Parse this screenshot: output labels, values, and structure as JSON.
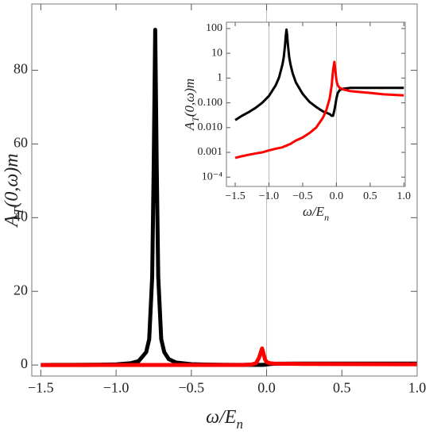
{
  "chart_data": [
    {
      "type": "line",
      "xlabel": {
        "main": "ω/E",
        "sub": "n"
      },
      "ylabel": {
        "main": "A",
        "sub": "T",
        "rest": "(0,ω)m"
      },
      "x": [
        -1.5,
        -1.4,
        -1.3,
        -1.2,
        -1.1,
        -1.0,
        -0.9,
        -0.85,
        -0.8,
        -0.78,
        -0.76,
        -0.75,
        -0.74,
        -0.73,
        -0.72,
        -0.7,
        -0.68,
        -0.65,
        -0.6,
        -0.5,
        -0.4,
        -0.3,
        -0.2,
        -0.15,
        -0.1,
        -0.07,
        -0.05,
        -0.03,
        -0.01,
        0.0,
        0.02,
        0.05,
        0.1,
        0.2,
        0.3,
        0.5,
        0.7,
        1.0
      ],
      "series": [
        {
          "color": "#000000",
          "values": [
            0.02,
            0.03,
            0.042,
            0.062,
            0.1,
            0.19,
            0.51,
            1.06,
            3.5,
            7.0,
            24,
            54,
            91,
            54,
            24,
            7.0,
            3.5,
            1.6,
            0.66,
            0.23,
            0.11,
            0.068,
            0.045,
            0.04,
            0.035,
            0.03,
            0.03,
            0.05,
            0.1,
            0.15,
            0.25,
            0.33,
            0.37,
            0.4,
            0.4,
            0.4,
            0.4,
            0.4
          ]
        },
        {
          "color": "#ff0000",
          "values": [
            0.0006,
            0.0007,
            0.0008,
            0.0009,
            0.001,
            0.0012,
            0.0014,
            0.0015,
            0.0016,
            0.0017,
            0.0018,
            0.0018,
            0.0019,
            0.0019,
            0.002,
            0.0021,
            0.0022,
            0.0025,
            0.003,
            0.004,
            0.006,
            0.01,
            0.025,
            0.05,
            0.15,
            0.5,
            2,
            4.5,
            1.5,
            0.8,
            0.5,
            0.4,
            0.35,
            0.3,
            0.28,
            0.25,
            0.22,
            0.2
          ]
        }
      ],
      "xlim": [
        -1.56,
        1.0
      ],
      "ylim": [
        -3,
        98
      ],
      "xticks": [
        {
          "value": -1.5,
          "label": "−1.5"
        },
        {
          "value": -1.0,
          "label": "−1.0"
        },
        {
          "value": -0.5,
          "label": "−0.5"
        },
        {
          "value": 0,
          "label": "0.0"
        },
        0.5,
        {
          "value": 1.0,
          "label": "1.0"
        }
      ],
      "yticks": [
        0,
        20,
        40,
        60,
        80
      ],
      "xgrid": [
        0
      ],
      "yscale": "linear"
    },
    {
      "type": "line",
      "xlabel": {
        "main": "ω/E",
        "sub": "n"
      },
      "ylabel": {
        "main": "A",
        "sub": "T",
        "rest": "(0,ω)m"
      },
      "x": [
        -1.5,
        -1.4,
        -1.3,
        -1.2,
        -1.1,
        -1.0,
        -0.9,
        -0.85,
        -0.8,
        -0.78,
        -0.76,
        -0.75,
        -0.74,
        -0.73,
        -0.72,
        -0.7,
        -0.68,
        -0.65,
        -0.6,
        -0.5,
        -0.4,
        -0.3,
        -0.2,
        -0.15,
        -0.1,
        -0.07,
        -0.05,
        -0.03,
        -0.01,
        0.0,
        0.02,
        0.05,
        0.1,
        0.2,
        0.3,
        0.5,
        0.7,
        1.0
      ],
      "series": [
        {
          "color": "#000000",
          "values": [
            0.02,
            0.03,
            0.042,
            0.062,
            0.1,
            0.19,
            0.51,
            1.06,
            3.5,
            7.0,
            24,
            54,
            91,
            54,
            24,
            7.0,
            3.5,
            1.6,
            0.66,
            0.23,
            0.11,
            0.068,
            0.045,
            0.04,
            0.035,
            0.03,
            0.03,
            0.05,
            0.1,
            0.15,
            0.25,
            0.33,
            0.37,
            0.4,
            0.4,
            0.4,
            0.4,
            0.4
          ]
        },
        {
          "color": "#ff0000",
          "values": [
            0.0006,
            0.0007,
            0.0008,
            0.0009,
            0.001,
            0.0012,
            0.0014,
            0.0015,
            0.0016,
            0.0017,
            0.0018,
            0.0018,
            0.0019,
            0.0019,
            0.002,
            0.0021,
            0.0022,
            0.0025,
            0.003,
            0.004,
            0.006,
            0.01,
            0.025,
            0.05,
            0.15,
            0.5,
            2,
            4.5,
            1.5,
            0.8,
            0.5,
            0.4,
            0.35,
            0.3,
            0.28,
            0.25,
            0.22,
            0.2
          ]
        }
      ],
      "xlim": [
        -1.63,
        1.02
      ],
      "ylim": [
        4.2e-05,
        180
      ],
      "xticks": [
        {
          "value": -1.5,
          "label": "−1.5"
        },
        {
          "value": -1.0,
          "label": "−1.0"
        },
        {
          "value": -0.5,
          "label": "−0.5"
        },
        {
          "value": 0,
          "label": "0.0"
        },
        0.5,
        {
          "value": 1.0,
          "label": "1.0"
        }
      ],
      "yticks": [
        100,
        10,
        1,
        {
          "value": 0.1,
          "label": "0.100"
        },
        {
          "value": 0.01,
          "label": "0.010"
        },
        0.001,
        {
          "value": 0.0001,
          "label": "10⁻⁴"
        }
      ],
      "xgrid": [
        -1,
        0
      ],
      "yscale": "log"
    }
  ]
}
